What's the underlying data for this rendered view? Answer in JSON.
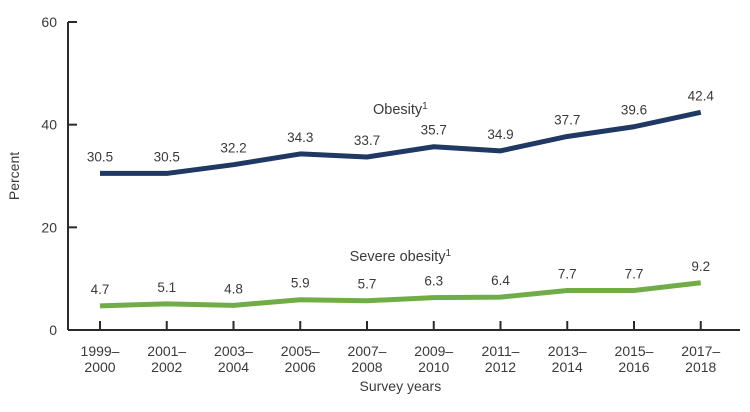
{
  "chart_data": {
    "type": "line",
    "title": "",
    "xlabel": "Survey years",
    "ylabel": "Percent",
    "ylim": [
      0,
      60
    ],
    "yticks": [
      0,
      20,
      40,
      60
    ],
    "grid": false,
    "legend": "inline-series-labels",
    "point_labels": "one-decimal-above-points",
    "categories": [
      [
        "1999–",
        "2000"
      ],
      [
        "2001–",
        "2002"
      ],
      [
        "2003–",
        "2004"
      ],
      [
        "2005–",
        "2006"
      ],
      [
        "2007–",
        "2008"
      ],
      [
        "2009–",
        "2010"
      ],
      [
        "2011–",
        "2012"
      ],
      [
        "2013–",
        "2014"
      ],
      [
        "2015–",
        "2016"
      ],
      [
        "2017–",
        "2018"
      ]
    ],
    "series": [
      {
        "name": "Obesity",
        "footnote_sup": "1",
        "color": "#1f3864",
        "values": [
          30.5,
          30.5,
          32.2,
          34.3,
          33.7,
          35.7,
          34.9,
          37.7,
          39.6,
          42.4
        ]
      },
      {
        "name": "Severe obesity",
        "footnote_sup": "1",
        "color": "#70ad47",
        "values": [
          4.7,
          5.1,
          4.8,
          5.9,
          5.7,
          6.3,
          6.4,
          7.7,
          7.7,
          9.2
        ]
      }
    ]
  },
  "colors": {
    "axis": "#2a2a2a",
    "text": "#3a3a3a",
    "background": "#ffffff"
  }
}
